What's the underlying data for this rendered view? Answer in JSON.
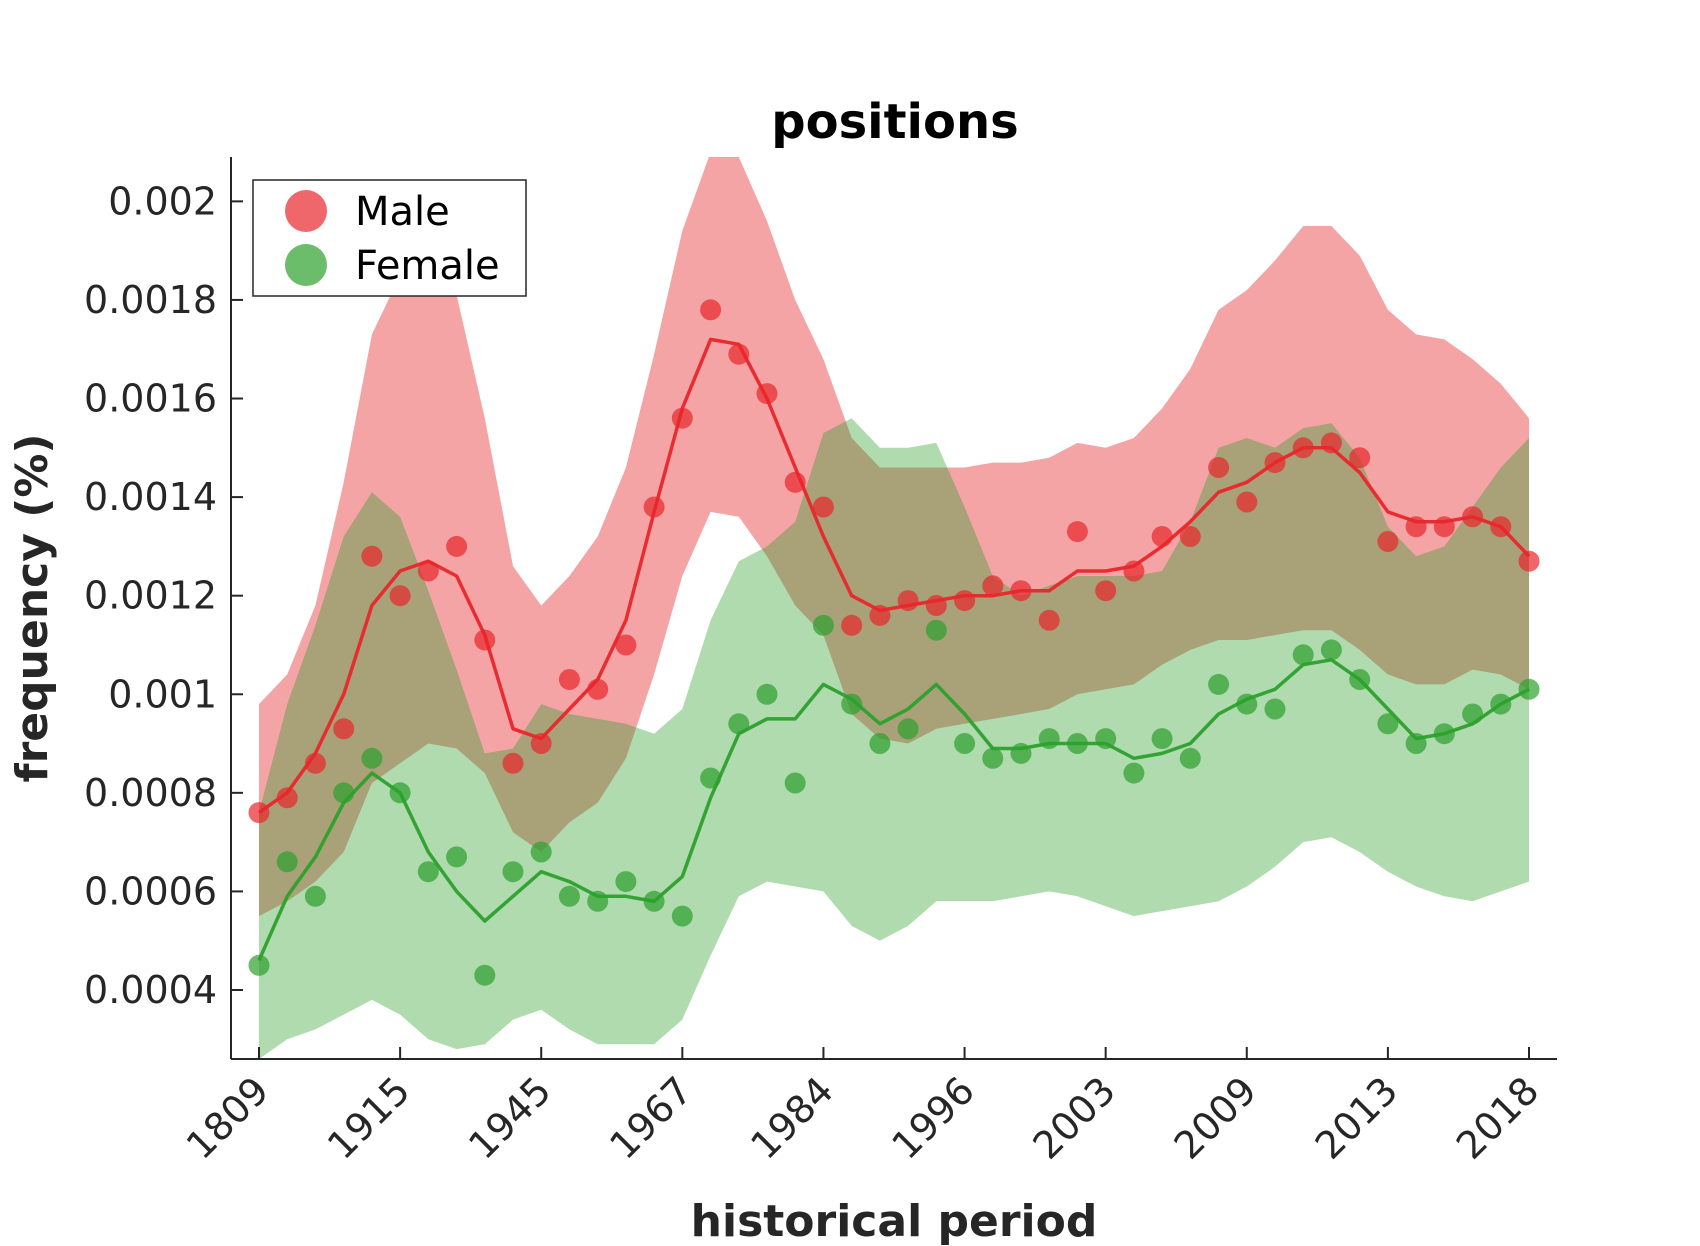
{
  "chart_data": {
    "type": "line",
    "title": "positions",
    "xlabel": "historical period",
    "ylabel": "frequency (%)",
    "ylim": [
      0.00026,
      0.00209
    ],
    "yticks": [
      0.0004,
      0.0006,
      0.0008,
      0.001,
      0.0012,
      0.0014,
      0.0016,
      0.0018,
      0.002
    ],
    "ytick_labels": [
      "0.0004",
      "0.0006",
      "0.0008",
      "0.001",
      "0.0012",
      "0.0014",
      "0.0016",
      "0.0018",
      "0.002"
    ],
    "xtick_labels": [
      "1809",
      "1915",
      "1945",
      "1967",
      "1984",
      "1996",
      "2003",
      "2009",
      "2013",
      "2018"
    ],
    "legend_placement": "top-left",
    "grid": false,
    "series": [
      {
        "name": "Male",
        "color": "#e8262b",
        "points": [
          0.00076,
          0.00079,
          0.00086,
          0.00093,
          0.00128,
          0.0012,
          0.00125,
          0.0013,
          0.00111,
          0.00086,
          0.0009,
          0.00103,
          0.00101,
          0.0011,
          0.00138,
          0.00156,
          0.00178,
          0.00169,
          0.00161,
          0.00143,
          0.00138,
          0.00114,
          0.00116,
          0.00119,
          0.00118,
          0.00119,
          0.00122,
          0.00121,
          0.00115,
          0.00133,
          0.00121,
          0.00125,
          0.00132,
          0.00132,
          0.00146,
          0.00139,
          0.00147,
          0.0015,
          0.00151,
          0.00148,
          0.00131,
          0.00134,
          0.00134,
          0.00136,
          0.00134,
          0.00127
        ],
        "smoothed": [
          0.00076,
          0.0008,
          0.00088,
          0.001,
          0.00118,
          0.00125,
          0.00127,
          0.00124,
          0.00112,
          0.00093,
          0.00091,
          0.00097,
          0.00103,
          0.00115,
          0.00137,
          0.00158,
          0.00172,
          0.00171,
          0.0016,
          0.00146,
          0.00132,
          0.0012,
          0.00117,
          0.00118,
          0.00119,
          0.0012,
          0.0012,
          0.00121,
          0.00121,
          0.00125,
          0.00125,
          0.00126,
          0.0013,
          0.00135,
          0.00141,
          0.00143,
          0.00147,
          0.0015,
          0.0015,
          0.00145,
          0.00137,
          0.00135,
          0.00135,
          0.00136,
          0.00134,
          0.00128
        ],
        "band_upper": [
          0.00098,
          0.00104,
          0.00118,
          0.00143,
          0.00173,
          0.00185,
          0.00188,
          0.00181,
          0.00156,
          0.00126,
          0.00118,
          0.00124,
          0.00132,
          0.00146,
          0.00169,
          0.00194,
          0.0021,
          0.00209,
          0.00196,
          0.0018,
          0.00168,
          0.00152,
          0.00146,
          0.00146,
          0.00146,
          0.00146,
          0.00147,
          0.00147,
          0.00148,
          0.00151,
          0.0015,
          0.00152,
          0.00158,
          0.00166,
          0.00178,
          0.00182,
          0.00188,
          0.00195,
          0.00195,
          0.00189,
          0.00178,
          0.00173,
          0.00172,
          0.00168,
          0.00163,
          0.00156
        ],
        "band_lower": [
          0.00055,
          0.00058,
          0.00062,
          0.00068,
          0.00082,
          0.00086,
          0.0009,
          0.00089,
          0.00084,
          0.00072,
          0.00068,
          0.00074,
          0.00078,
          0.00087,
          0.00104,
          0.00124,
          0.00137,
          0.00136,
          0.00128,
          0.00118,
          0.00112,
          0.00096,
          0.00091,
          0.0009,
          0.00093,
          0.00094,
          0.00095,
          0.00096,
          0.00097,
          0.001,
          0.00101,
          0.00102,
          0.00106,
          0.00109,
          0.00111,
          0.00111,
          0.00112,
          0.00113,
          0.00113,
          0.00109,
          0.00104,
          0.00102,
          0.00102,
          0.00105,
          0.00104,
          0.00101
        ]
      },
      {
        "name": "Female",
        "color": "#2ca02c",
        "points": [
          0.00045,
          0.00066,
          0.00059,
          0.0008,
          0.00087,
          0.0008,
          0.00064,
          0.00067,
          0.00043,
          0.00064,
          0.00068,
          0.00059,
          0.00058,
          0.00062,
          0.00058,
          0.00055,
          0.00083,
          0.00094,
          0.001,
          0.00082,
          0.00114,
          0.00098,
          0.0009,
          0.00093,
          0.00113,
          0.0009,
          0.00087,
          0.00088,
          0.00091,
          0.0009,
          0.00091,
          0.00084,
          0.00091,
          0.00087,
          0.00102,
          0.00098,
          0.00097,
          0.00108,
          0.00109,
          0.00103,
          0.00094,
          0.0009,
          0.00092,
          0.00096,
          0.00098,
          0.00101
        ],
        "smoothed": [
          0.00046,
          0.00059,
          0.00067,
          0.00078,
          0.00084,
          0.0008,
          0.00068,
          0.0006,
          0.00054,
          0.00059,
          0.00064,
          0.00062,
          0.00059,
          0.00059,
          0.00058,
          0.00063,
          0.00079,
          0.00092,
          0.00095,
          0.00095,
          0.00102,
          0.00099,
          0.00094,
          0.00097,
          0.00102,
          0.00096,
          0.00089,
          0.00089,
          0.0009,
          0.0009,
          0.0009,
          0.00087,
          0.00088,
          0.0009,
          0.00096,
          0.00099,
          0.00101,
          0.00106,
          0.00107,
          0.00103,
          0.00097,
          0.00091,
          0.00092,
          0.00094,
          0.00098,
          0.00101
        ],
        "band_upper": [
          0.00076,
          0.00098,
          0.00114,
          0.00132,
          0.00141,
          0.00136,
          0.00121,
          0.00105,
          0.00088,
          0.00089,
          0.00098,
          0.00096,
          0.00095,
          0.00094,
          0.00092,
          0.00097,
          0.00115,
          0.00127,
          0.0013,
          0.00135,
          0.00153,
          0.00156,
          0.0015,
          0.0015,
          0.00151,
          0.00138,
          0.00124,
          0.0012,
          0.00122,
          0.00124,
          0.00124,
          0.00124,
          0.00125,
          0.00135,
          0.0015,
          0.00152,
          0.0015,
          0.00154,
          0.00155,
          0.00148,
          0.00134,
          0.00128,
          0.0013,
          0.00138,
          0.00146,
          0.00152
        ],
        "band_lower": [
          0.00026,
          0.0003,
          0.00032,
          0.00035,
          0.00038,
          0.00035,
          0.0003,
          0.00028,
          0.00029,
          0.00034,
          0.00036,
          0.00032,
          0.00029,
          0.00029,
          0.00029,
          0.00034,
          0.00047,
          0.00059,
          0.00062,
          0.00061,
          0.0006,
          0.00053,
          0.0005,
          0.00053,
          0.00058,
          0.00058,
          0.00058,
          0.00059,
          0.0006,
          0.00059,
          0.00057,
          0.00055,
          0.00056,
          0.00057,
          0.00058,
          0.00061,
          0.00065,
          0.0007,
          0.00071,
          0.00068,
          0.00064,
          0.00061,
          0.00059,
          0.00058,
          0.0006,
          0.00062
        ]
      }
    ]
  }
}
